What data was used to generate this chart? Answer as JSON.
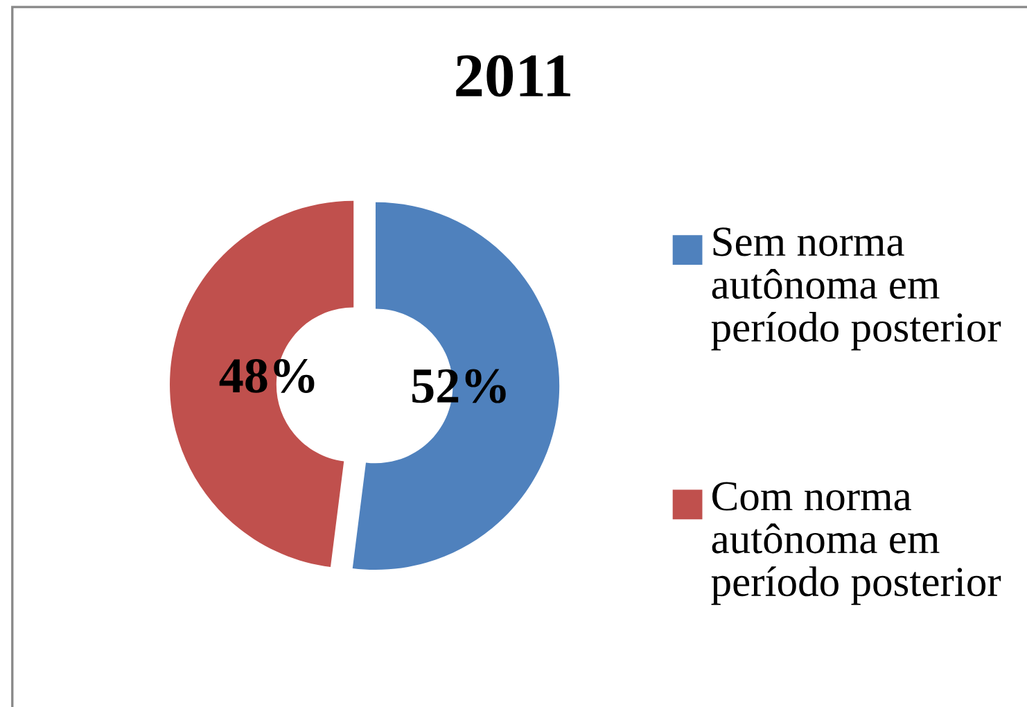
{
  "chart_data": {
    "type": "donut",
    "title": "2011",
    "categories": [
      "Sem norma autônoma em período posterior",
      "Com norma autônoma em período posterior"
    ],
    "values": [
      52,
      48
    ],
    "colors": [
      "#4f81bd",
      "#c0504d"
    ],
    "value_labels": [
      "52%",
      "48%"
    ],
    "legend": "right"
  }
}
